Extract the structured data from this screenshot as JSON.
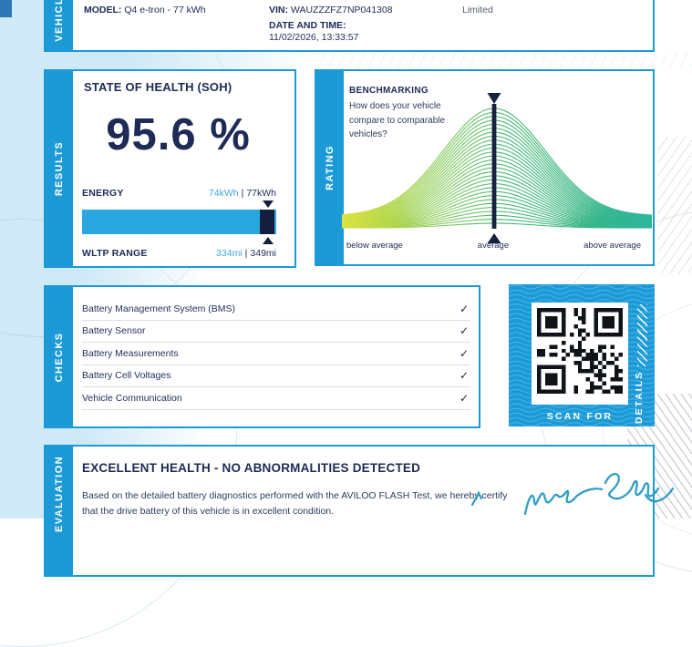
{
  "vehicle": {
    "tab": "VEHICLE",
    "model_label": "MODEL:",
    "model_value": "Q4 e-tron - 77 kWh",
    "vin_label": "VIN:",
    "vin_value": "WAUZZZFZ7NP041308",
    "datetime_label": "DATE AND TIME:",
    "datetime_value": "11/02/2026, 13:33:57",
    "partner_text": "Limited"
  },
  "results": {
    "tab": "RESULTS",
    "title": "STATE OF HEALTH (SOH)",
    "soh_value": "95.6 %",
    "energy": {
      "label": "ENERGY",
      "current": "74kWh",
      "separator": "|",
      "total": "77kWh",
      "percent": 95.6
    },
    "wltp": {
      "label": "WLTP RANGE",
      "current": "334mi",
      "separator": "|",
      "total": "349mi"
    }
  },
  "rating": {
    "tab": "RATING",
    "title": "BENCHMARKING",
    "subtitle_lines": [
      "How does your vehicle",
      "compare to comparable",
      "vehicles?"
    ],
    "axis_labels": {
      "below": "below average",
      "average": "average",
      "above": "above average"
    }
  },
  "chart_data": {
    "type": "area",
    "title": "BENCHMARKING",
    "description": "Normal-distribution bell curve rendered as a bundle of thin curves showing how this vehicle compares to comparable vehicles; dark vertical marker line at the average position.",
    "x_tick_labels": [
      "below average",
      "average",
      "above average"
    ],
    "marker_position": "average",
    "series_count": 30,
    "gradient_colors": [
      "#dce23f",
      "#8ccd55",
      "#3cb468",
      "#2eb69e"
    ],
    "marker_color": "#16223f"
  },
  "checks": {
    "tab": "CHECKS",
    "check_glyph": "✓",
    "items": [
      {
        "label": "Battery Management System (BMS)",
        "status": "pass"
      },
      {
        "label": "Battery Sensor",
        "status": "pass"
      },
      {
        "label": "Battery Measurements",
        "status": "pass"
      },
      {
        "label": "Battery Cell Voltages",
        "status": "pass"
      },
      {
        "label": "Vehicle Communication",
        "status": "pass"
      }
    ]
  },
  "qr": {
    "scan_label": "SCAN FOR",
    "details_label": "DETAILS"
  },
  "evaluation": {
    "tab": "EVALUATION",
    "heading": "EXCELLENT HEALTH - NO ABNORMALITIES DETECTED",
    "body": "Based on the detailed battery diagnostics performed with the AVILOO FLASH Test, we hereby certify that the drive battery of this vehicle is in excellent condition.",
    "signature_name": "Marcus Berger"
  },
  "colors": {
    "accent_blue": "#1b9ad7",
    "light_blue_bg": "#cfe9f7",
    "navy_text": "#1d2b56",
    "value_blue": "#3fa5da",
    "bar_blue": "#29a8e0",
    "bar_navy": "#131f3c",
    "signature_blue": "#2f9dc4"
  }
}
